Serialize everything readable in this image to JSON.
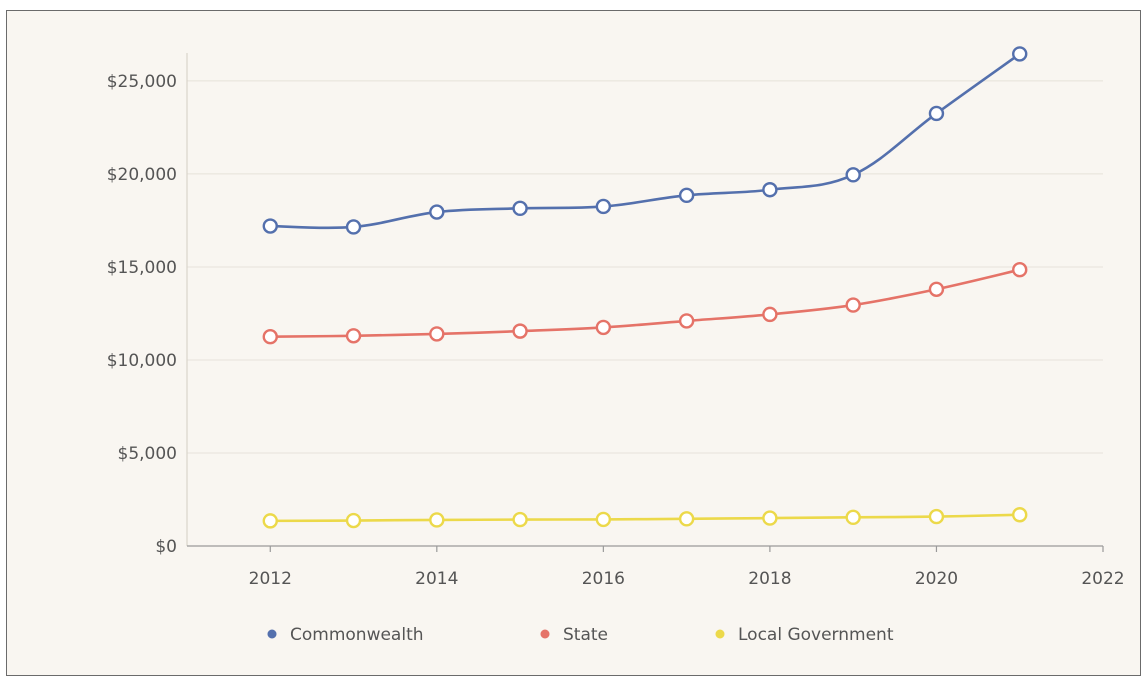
{
  "chart_data": {
    "type": "line",
    "x": [
      2012,
      2013,
      2014,
      2015,
      2016,
      2017,
      2018,
      2019,
      2020,
      2021
    ],
    "series": [
      {
        "name": "Commonwealth",
        "color": "#5470ad",
        "values": [
          17200,
          17150,
          17950,
          18150,
          18250,
          18850,
          19150,
          19950,
          23250,
          26450
        ]
      },
      {
        "name": "State",
        "color": "#e57368",
        "values": [
          11250,
          11300,
          11400,
          11550,
          11750,
          12100,
          12450,
          12950,
          13800,
          14850
        ]
      },
      {
        "name": "Local Government",
        "color": "#ecd94a",
        "values": [
          1350,
          1370,
          1400,
          1420,
          1430,
          1460,
          1500,
          1540,
          1580,
          1680
        ]
      }
    ],
    "xlim": [
      2011,
      2022
    ],
    "ylim": [
      0,
      26500
    ],
    "x_ticks": [
      2012,
      2014,
      2016,
      2018,
      2020,
      2022
    ],
    "y_ticks": [
      0,
      5000,
      10000,
      15000,
      20000,
      25000
    ],
    "x_tick_labels": [
      "2012",
      "2014",
      "2016",
      "2018",
      "2020",
      "2022"
    ],
    "y_tick_labels": [
      "$0",
      "$5,000",
      "$10,000",
      "$15,000",
      "$20,000",
      "$25,000"
    ],
    "grid": "horizontal",
    "legend_position": "bottom",
    "title": "",
    "xlabel": "",
    "ylabel": ""
  }
}
